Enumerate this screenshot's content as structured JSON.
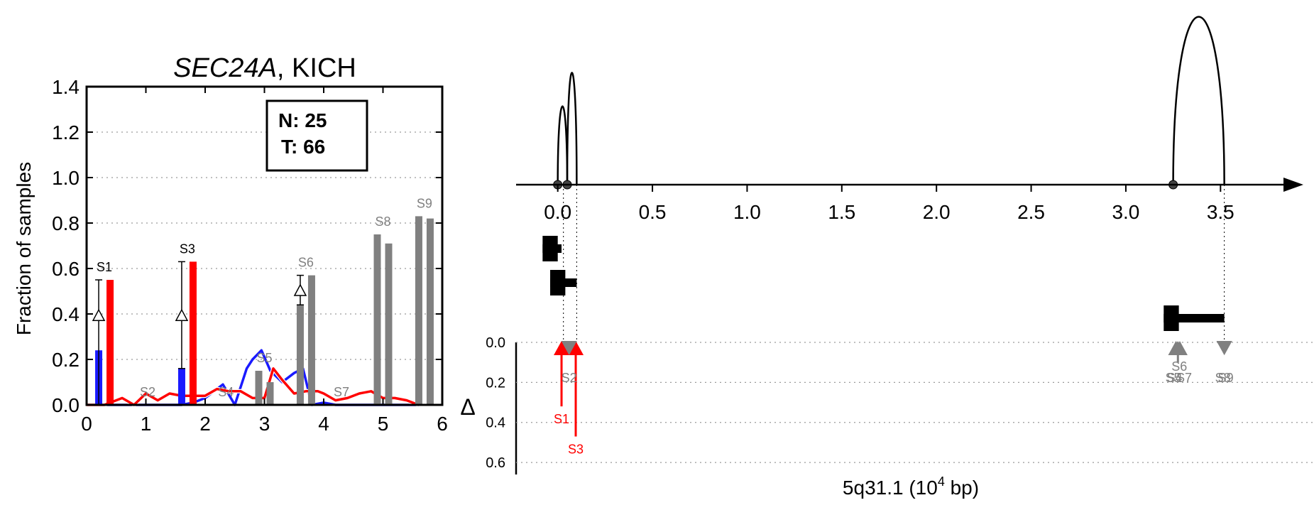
{
  "chart_data": [
    {
      "type": "bar",
      "title_gene": "SEC24A",
      "title_rest": ", KICH",
      "ylabel": "Fraction of samples",
      "xlim": [
        0,
        6
      ],
      "ylim": [
        0,
        1.4
      ],
      "xticks": [
        "0",
        "1",
        "2",
        "3",
        "4",
        "5",
        "6"
      ],
      "yticks": [
        "0.0",
        "0.2",
        "0.4",
        "0.6",
        "0.8",
        "1.0",
        "1.2",
        "1.4"
      ],
      "grid": "horizontal dotted",
      "legend_box": {
        "n_label": "N: 25",
        "t_label": "T: 66",
        "placement": "top-right"
      },
      "bar_pairs": [
        {
          "label": "S1",
          "x": 0.3,
          "normal": 0.24,
          "tumor": 0.55,
          "highlight": true,
          "delta_marker": 0.39,
          "delta_err": [
            0.0,
            0.55
          ]
        },
        {
          "label": "S2",
          "x": 1.03,
          "normal": 0.0,
          "tumor": 0.0,
          "highlight": false
        },
        {
          "label": "S3",
          "x": 1.7,
          "normal": 0.16,
          "tumor": 0.63,
          "highlight": true,
          "delta_marker": 0.39,
          "delta_err": [
            0.16,
            0.63
          ]
        },
        {
          "label": "S4",
          "x": 2.35,
          "normal": 0.0,
          "tumor": 0.0,
          "highlight": false
        },
        {
          "label": "S5",
          "x": 3.0,
          "normal": 0.15,
          "tumor": 0.1,
          "highlight": false
        },
        {
          "label": "S6",
          "x": 3.7,
          "normal": 0.44,
          "tumor": 0.57,
          "highlight": false,
          "delta_marker": 0.5,
          "delta_err": [
            0.44,
            0.57
          ]
        },
        {
          "label": "S7",
          "x": 4.3,
          "normal": 0.0,
          "tumor": 0.0,
          "highlight": false
        },
        {
          "label": "S8",
          "x": 5.0,
          "normal": 0.75,
          "tumor": 0.71,
          "highlight": false
        },
        {
          "label": "S9",
          "x": 5.7,
          "normal": 0.83,
          "tumor": 0.82,
          "highlight": false
        }
      ],
      "series": [
        {
          "color": "#1a1aff",
          "x": [
            0.0,
            0.3,
            0.6,
            0.9,
            1.0,
            1.2,
            1.4,
            1.6,
            1.8,
            2.0,
            2.2,
            2.3,
            2.5,
            2.7,
            2.8,
            2.95,
            3.1,
            3.3,
            3.5,
            3.65,
            3.8,
            4.0,
            4.2,
            4.4,
            4.6,
            4.8,
            5.0,
            5.2,
            5.4,
            5.6
          ],
          "y": [
            0.0,
            0.0,
            0.0,
            0.0,
            0.0,
            0.0,
            0.0,
            0.0,
            0.01,
            0.03,
            0.07,
            0.09,
            0.0,
            0.16,
            0.2,
            0.24,
            0.15,
            0.1,
            0.14,
            0.16,
            0.0,
            0.01,
            0.0,
            0.0,
            0.0,
            0.0,
            0.0,
            0.0,
            0.0,
            0.0
          ]
        },
        {
          "color": "#ff0000",
          "x": [
            0.0,
            0.3,
            0.6,
            0.8,
            1.0,
            1.2,
            1.4,
            1.6,
            1.8,
            2.0,
            2.2,
            2.4,
            2.6,
            2.8,
            3.0,
            3.15,
            3.3,
            3.5,
            3.7,
            3.9,
            4.0,
            4.2,
            4.4,
            4.6,
            4.8,
            5.0,
            5.2,
            5.4,
            5.6
          ],
          "y": [
            0.0,
            0.0,
            0.03,
            0.0,
            0.05,
            0.02,
            0.05,
            0.04,
            0.04,
            0.04,
            0.07,
            0.06,
            0.06,
            0.03,
            0.03,
            0.16,
            0.11,
            0.05,
            0.06,
            0.06,
            0.05,
            0.02,
            0.03,
            0.05,
            0.06,
            0.03,
            0.03,
            0.02,
            0.0
          ]
        }
      ]
    },
    {
      "type": "line",
      "xlabel_prefix": "5q31.1 (10",
      "xlabel_exp": "4",
      "xlabel_suffix": " bp)",
      "xticks": [
        "0.0",
        "0.5",
        "1.0",
        "1.5",
        "2.0",
        "2.5",
        "3.0",
        "3.5"
      ],
      "xlim": [
        -0.22,
        3.75
      ],
      "arcs": [
        {
          "x1": 0.0,
          "x2": 0.05,
          "height": 0.7
        },
        {
          "x1": 0.05,
          "x2": 0.1,
          "height": 1.0
        },
        {
          "x1": 3.25,
          "x2": 3.52,
          "height": 1.5
        }
      ],
      "nodes": [
        0.0,
        0.05,
        3.25
      ],
      "delta_axis": {
        "label": "Δ",
        "ticks": [
          "0.0",
          "0.2",
          "0.4",
          "0.6"
        ],
        "ylim": [
          0,
          0.66
        ]
      },
      "features": [
        {
          "x1": -0.08,
          "x2": 0.02,
          "row": 1,
          "box_w": 0.08
        },
        {
          "x1": -0.04,
          "x2": 0.1,
          "row": 2,
          "box_w": 0.08
        },
        {
          "x1": 3.2,
          "x2": 3.52,
          "row": 3,
          "box_w": 0.08
        }
      ],
      "dotted_links": [
        0.03,
        0.1,
        3.52
      ],
      "site_markers": [
        {
          "label": "S1",
          "x": 0.02,
          "delta": 0.32,
          "color": "#ff0000",
          "dir": "up"
        },
        {
          "label": "S3",
          "x": 0.095,
          "delta": 0.47,
          "color": "#ff0000",
          "dir": "up"
        },
        {
          "label": "S2",
          "x": 0.06,
          "delta": 0.0,
          "color": "#808080",
          "dir": "down"
        },
        {
          "label": "S5",
          "x": 3.265,
          "delta": 0.0,
          "color": "#808080",
          "dir": "up"
        },
        {
          "label": "S4",
          "x": 3.265,
          "delta": 0.0,
          "color": "#808080",
          "dir": "up"
        },
        {
          "label": "S7",
          "x": 3.285,
          "delta": 0.0,
          "color": "#808080",
          "dir": "up"
        },
        {
          "label": "S6",
          "x": 3.275,
          "delta": 0.1,
          "color": "#808080",
          "dir": "up"
        },
        {
          "label": "S8",
          "x": 3.52,
          "delta": 0.0,
          "color": "#808080",
          "dir": "down"
        },
        {
          "label": "S9",
          "x": 3.52,
          "delta": 0.0,
          "color": "#808080",
          "dir": "down"
        }
      ]
    }
  ]
}
